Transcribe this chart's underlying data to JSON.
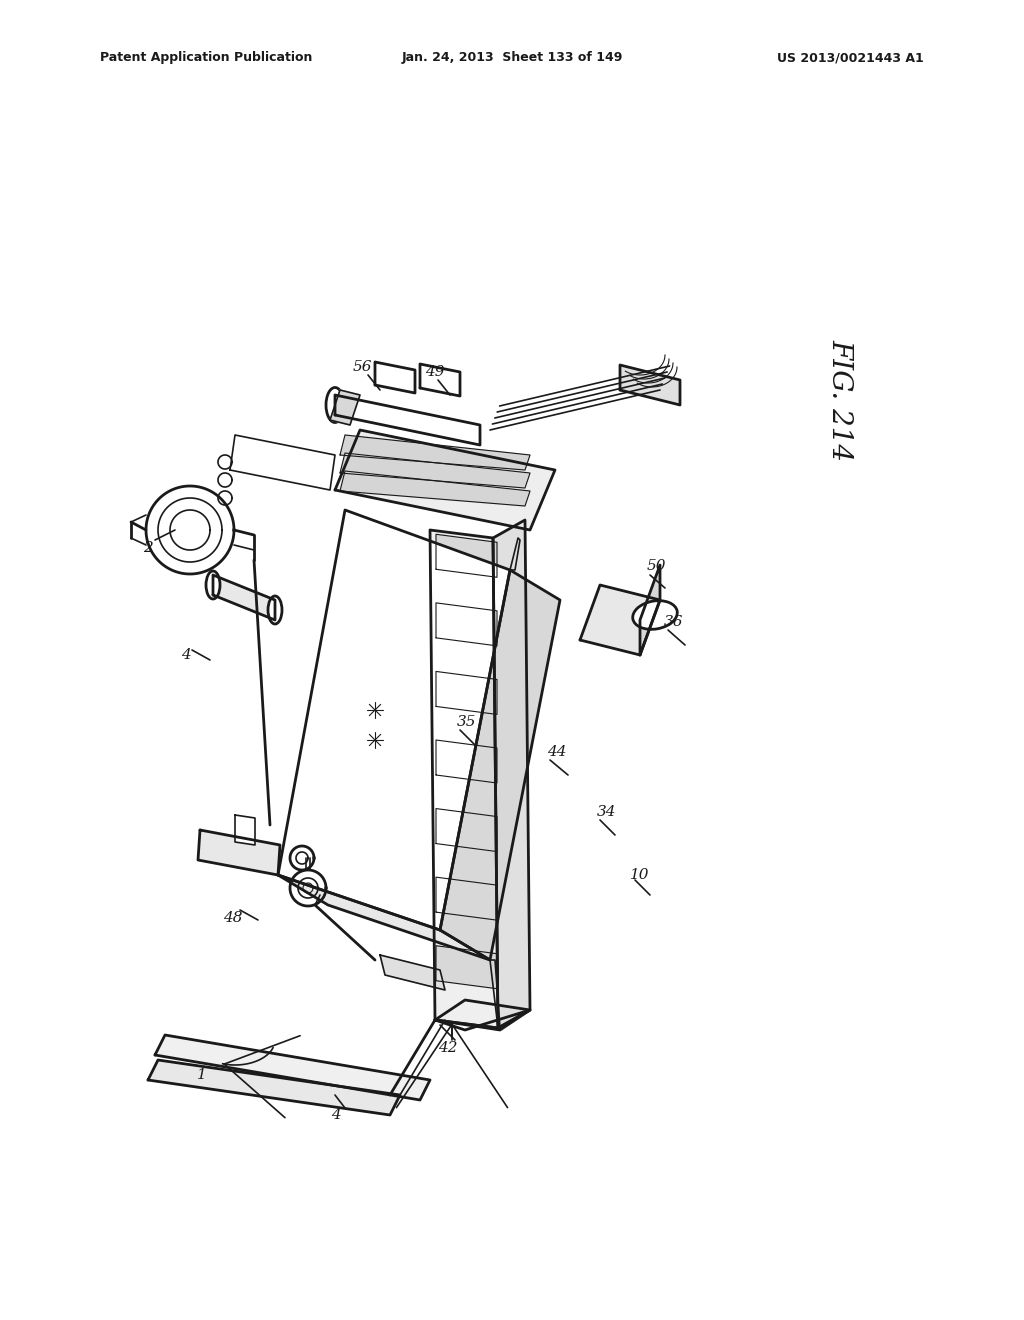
{
  "header_left": "Patent Application Publication",
  "header_mid": "Jan. 24, 2013  Sheet 133 of 149",
  "header_right": "US 2013/0021443 A1",
  "fig_label": "FIG. 214",
  "background": "#ffffff",
  "line_color": "#1a1a1a"
}
